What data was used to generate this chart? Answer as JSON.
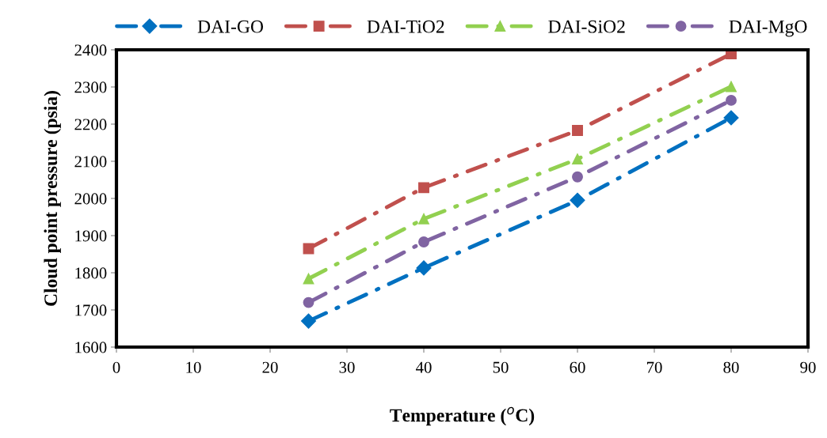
{
  "chart_data": {
    "type": "line",
    "xlabel": "Temperature ($^{o}$C)",
    "ylabel": "Cloud point pressure (psia)",
    "x": [
      25,
      40,
      60,
      80
    ],
    "series": [
      {
        "name": "DAI-GO",
        "color": "#0070c0",
        "marker": "diamond",
        "values": [
          1670,
          1813,
          1995,
          2217
        ]
      },
      {
        "name": "DAI-TiO2",
        "color": "#c0504d",
        "marker": "square",
        "values": [
          1865,
          2029,
          2183,
          2389
        ]
      },
      {
        "name": "DAI-SiO2",
        "color": "#92d050",
        "marker": "triangle",
        "values": [
          1784,
          1945,
          2106,
          2301
        ]
      },
      {
        "name": "DAI-MgO",
        "color": "#8064a2",
        "marker": "circle",
        "values": [
          1720,
          1883,
          2058,
          2264
        ]
      }
    ],
    "xlim": [
      0,
      90
    ],
    "xticks": [
      0,
      10,
      20,
      30,
      40,
      50,
      60,
      70,
      80,
      90
    ],
    "ylim": [
      1600,
      2400
    ],
    "yticks": [
      1600,
      1700,
      1800,
      1900,
      2000,
      2100,
      2200,
      2300,
      2400
    ],
    "line_style": "dashed",
    "legend": "top",
    "grid": false
  }
}
